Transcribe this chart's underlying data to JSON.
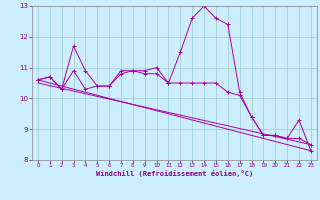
{
  "x": [
    0,
    1,
    2,
    3,
    4,
    5,
    6,
    7,
    8,
    9,
    10,
    11,
    12,
    13,
    14,
    15,
    16,
    17,
    18,
    19,
    20,
    21,
    22,
    23
  ],
  "line1": [
    10.6,
    10.7,
    10.3,
    11.7,
    10.9,
    10.4,
    10.4,
    10.9,
    10.9,
    10.9,
    11.0,
    10.5,
    11.5,
    12.6,
    13.0,
    12.6,
    12.4,
    10.2,
    9.4,
    8.8,
    8.8,
    8.7,
    9.3,
    8.3
  ],
  "line2": [
    10.6,
    10.7,
    10.3,
    10.9,
    10.3,
    10.4,
    10.4,
    10.8,
    10.9,
    10.8,
    10.8,
    10.5,
    10.5,
    10.5,
    10.5,
    10.5,
    10.2,
    10.1,
    9.4,
    8.8,
    8.8,
    8.7,
    8.7,
    8.5
  ],
  "line3_x": [
    0,
    23
  ],
  "line3_y": [
    10.6,
    8.3
  ],
  "line4_x": [
    0,
    23
  ],
  "line4_y": [
    10.5,
    8.5
  ],
  "bg_color": "#cceeff",
  "line_color": "#aa00aa",
  "grid_color": "#99cccc",
  "xlabel": "Windchill (Refroidissement éolien,°C)",
  "ylim": [
    8,
    13
  ],
  "xlim": [
    -0.5,
    23.5
  ],
  "yticks": [
    8,
    9,
    10,
    11,
    12,
    13
  ],
  "xticks": [
    0,
    1,
    2,
    3,
    4,
    5,
    6,
    7,
    8,
    9,
    10,
    11,
    12,
    13,
    14,
    15,
    16,
    17,
    18,
    19,
    20,
    21,
    22,
    23
  ]
}
